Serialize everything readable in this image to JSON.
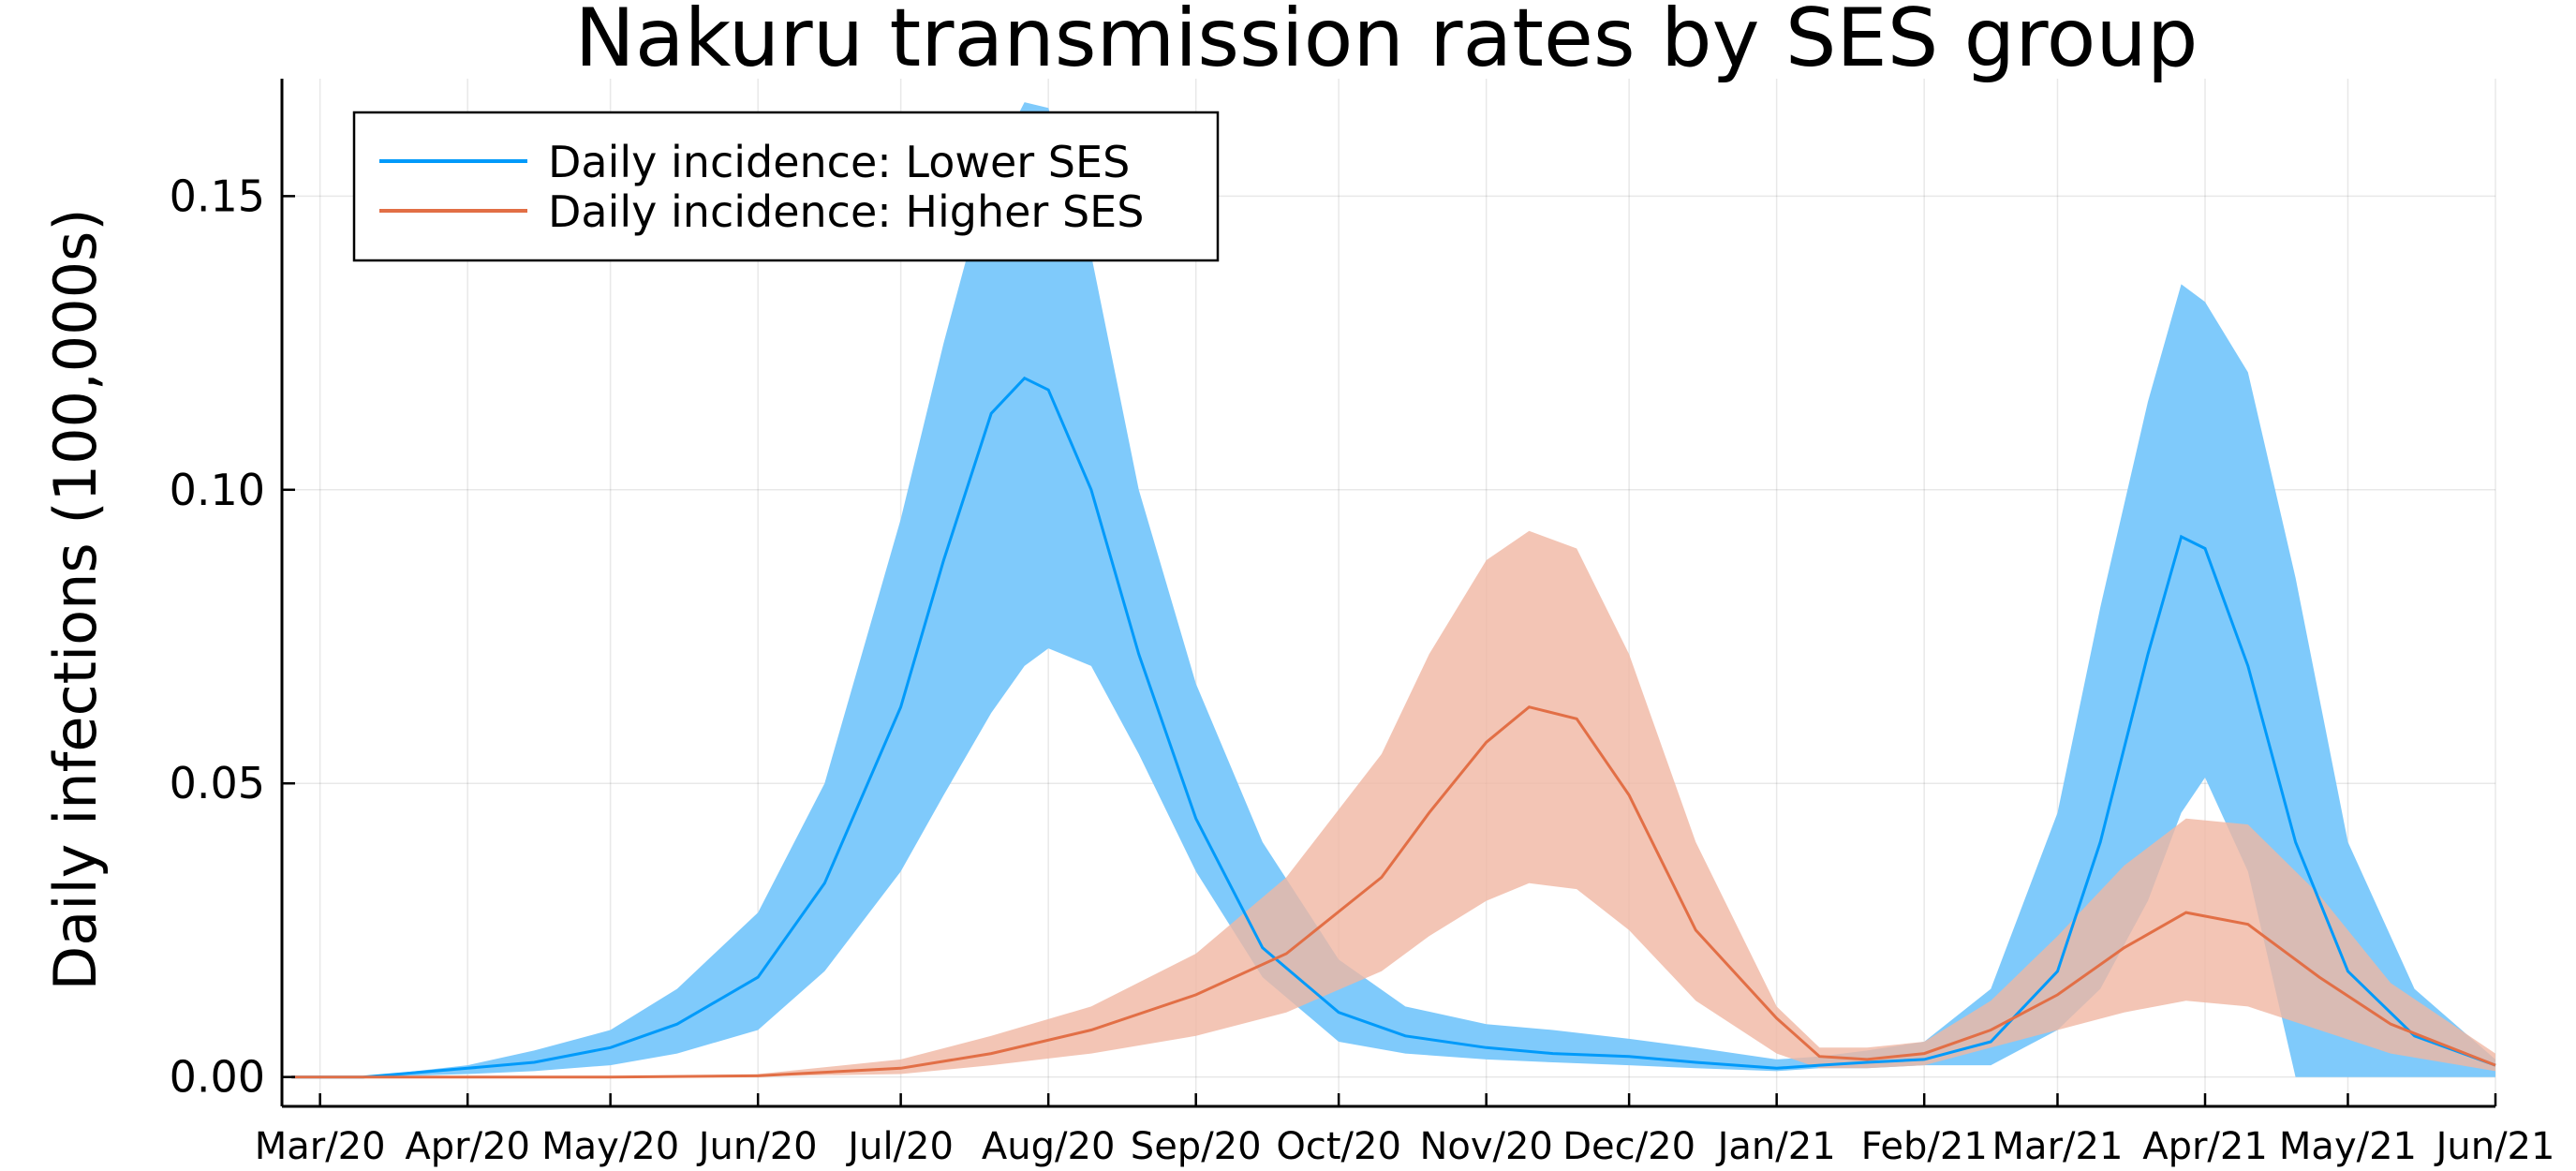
{
  "chart_data": {
    "type": "line",
    "title": "Nakuru transmission rates by SES group",
    "ylabel": "Daily infections (100,000s)",
    "xlabel": "",
    "ylim": [
      -0.005,
      0.17
    ],
    "xlim": [
      "2020-02-22",
      "2021-06-01"
    ],
    "grid": true,
    "legend_position": "top-left",
    "x_ticks": [
      "2020-03-01",
      "2020-04-01",
      "2020-05-01",
      "2020-06-01",
      "2020-07-01",
      "2020-08-01",
      "2020-09-01",
      "2020-10-01",
      "2020-11-01",
      "2020-12-01",
      "2021-01-01",
      "2021-02-01",
      "2021-03-01",
      "2021-04-01",
      "2021-05-01",
      "2021-06-01"
    ],
    "x_tick_labels": [
      "Mar/20",
      "Apr/20",
      "May/20",
      "Jun/20",
      "Jul/20",
      "Aug/20",
      "Sep/20",
      "Oct/20",
      "Nov/20",
      "Dec/20",
      "Jan/21",
      "Feb/21",
      "Mar/21",
      "Apr/21",
      "May/21",
      "Jun/21"
    ],
    "y_ticks": [
      0,
      0.05,
      0.1,
      0.15
    ],
    "y_tick_labels": [
      "0.00",
      "0.05",
      "0.10",
      "0.15"
    ],
    "series": [
      {
        "name": "Daily incidence: Lower SES",
        "color": "#009AFA",
        "band_color": "#7FCAFB",
        "x": [
          "2020-02-24",
          "2020-03-10",
          "2020-04-01",
          "2020-04-15",
          "2020-05-01",
          "2020-05-15",
          "2020-06-01",
          "2020-06-15",
          "2020-07-01",
          "2020-07-10",
          "2020-07-20",
          "2020-07-27",
          "2020-08-01",
          "2020-08-10",
          "2020-08-20",
          "2020-09-01",
          "2020-09-15",
          "2020-10-01",
          "2020-10-15",
          "2020-11-01",
          "2020-11-15",
          "2020-12-01",
          "2020-12-15",
          "2021-01-01",
          "2021-01-10",
          "2021-01-20",
          "2021-02-01",
          "2021-02-15",
          "2021-03-01",
          "2021-03-10",
          "2021-03-20",
          "2021-03-27",
          "2021-04-01",
          "2021-04-10",
          "2021-04-20",
          "2021-05-01",
          "2021-05-15",
          "2021-06-01"
        ],
        "values": [
          0,
          0,
          0.0015,
          0.0025,
          0.005,
          0.009,
          0.017,
          0.033,
          0.063,
          0.088,
          0.113,
          0.119,
          0.117,
          0.1,
          0.072,
          0.044,
          0.022,
          0.011,
          0.007,
          0.005,
          0.004,
          0.0035,
          0.0025,
          0.0015,
          0.002,
          0.0025,
          0.003,
          0.006,
          0.018,
          0.04,
          0.072,
          0.092,
          0.09,
          0.07,
          0.04,
          0.018,
          0.007,
          0.002
        ],
        "lower": [
          0,
          0,
          0.0005,
          0.001,
          0.002,
          0.004,
          0.008,
          0.018,
          0.035,
          0.048,
          0.062,
          0.07,
          0.073,
          0.07,
          0.055,
          0.035,
          0.017,
          0.006,
          0.004,
          0.003,
          0.0025,
          0.002,
          0.0015,
          0.001,
          0.0015,
          0.0015,
          0.002,
          0.002,
          0.008,
          0.015,
          0.03,
          0.045,
          0.051,
          0.035,
          0,
          0,
          0,
          0
        ],
        "upper": [
          0,
          0,
          0.002,
          0.0045,
          0.008,
          0.015,
          0.028,
          0.05,
          0.095,
          0.125,
          0.155,
          0.166,
          0.165,
          0.14,
          0.1,
          0.067,
          0.04,
          0.02,
          0.012,
          0.009,
          0.008,
          0.0065,
          0.005,
          0.003,
          0.0035,
          0.0045,
          0.006,
          0.015,
          0.045,
          0.08,
          0.115,
          0.135,
          0.132,
          0.12,
          0.085,
          0.04,
          0.015,
          0.003
        ]
      },
      {
        "name": "Daily incidence: Higher SES",
        "color": "#E26F46",
        "band_color": "#F0B7A2",
        "x": [
          "2020-02-24",
          "2020-04-01",
          "2020-05-01",
          "2020-06-01",
          "2020-07-01",
          "2020-07-20",
          "2020-08-10",
          "2020-09-01",
          "2020-09-20",
          "2020-10-10",
          "2020-10-20",
          "2020-11-01",
          "2020-11-10",
          "2020-11-20",
          "2020-12-01",
          "2020-12-15",
          "2021-01-01",
          "2021-01-10",
          "2021-01-20",
          "2021-02-01",
          "2021-02-15",
          "2021-03-01",
          "2021-03-15",
          "2021-03-28",
          "2021-04-10",
          "2021-04-25",
          "2021-05-10",
          "2021-06-01"
        ],
        "values": [
          0,
          0,
          0,
          0.0002,
          0.0015,
          0.004,
          0.008,
          0.014,
          0.021,
          0.034,
          0.045,
          0.057,
          0.063,
          0.061,
          0.048,
          0.025,
          0.01,
          0.0035,
          0.003,
          0.004,
          0.008,
          0.014,
          0.022,
          0.028,
          0.026,
          0.017,
          0.009,
          0.002
        ],
        "lower": [
          0,
          0,
          0,
          0.0001,
          0.0005,
          0.002,
          0.004,
          0.007,
          0.011,
          0.018,
          0.024,
          0.03,
          0.033,
          0.032,
          0.025,
          0.013,
          0.004,
          0.0015,
          0.0015,
          0.002,
          0.005,
          0.008,
          0.011,
          0.013,
          0.012,
          0.008,
          0.004,
          0.001
        ],
        "upper": [
          0,
          0,
          0,
          0.0005,
          0.003,
          0.007,
          0.012,
          0.021,
          0.034,
          0.055,
          0.072,
          0.088,
          0.093,
          0.09,
          0.072,
          0.04,
          0.012,
          0.005,
          0.005,
          0.006,
          0.013,
          0.024,
          0.036,
          0.044,
          0.043,
          0.031,
          0.016,
          0.004
        ]
      }
    ]
  }
}
